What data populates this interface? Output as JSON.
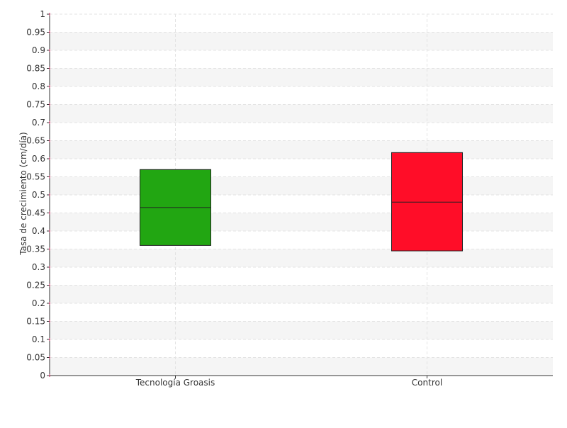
{
  "chart_data": {
    "type": "box",
    "title": "",
    "xlabel": "",
    "ylabel": "Tasa de crecimiento (cm/día)",
    "ylim": [
      0,
      1
    ],
    "yticks": [
      "0",
      "0.05",
      "0.1",
      "0.15",
      "0.2",
      "0.25",
      "0.3",
      "0.35",
      "0.4",
      "0.45",
      "0.5",
      "0.55",
      "0.6",
      "0.65",
      "0.7",
      "0.75",
      "0.8",
      "0.85",
      "0.9",
      "0.95",
      "1"
    ],
    "categories": [
      "Tecnología Groasis",
      "Control"
    ],
    "boxes": [
      {
        "category": "Tecnología Groasis",
        "q1": 0.36,
        "median": 0.465,
        "q3": 0.57,
        "color": "#22a612"
      },
      {
        "category": "Control",
        "q1": 0.345,
        "median": 0.48,
        "q3": 0.617,
        "color": "#ff0d28"
      }
    ],
    "grid": true,
    "legend": "none"
  }
}
